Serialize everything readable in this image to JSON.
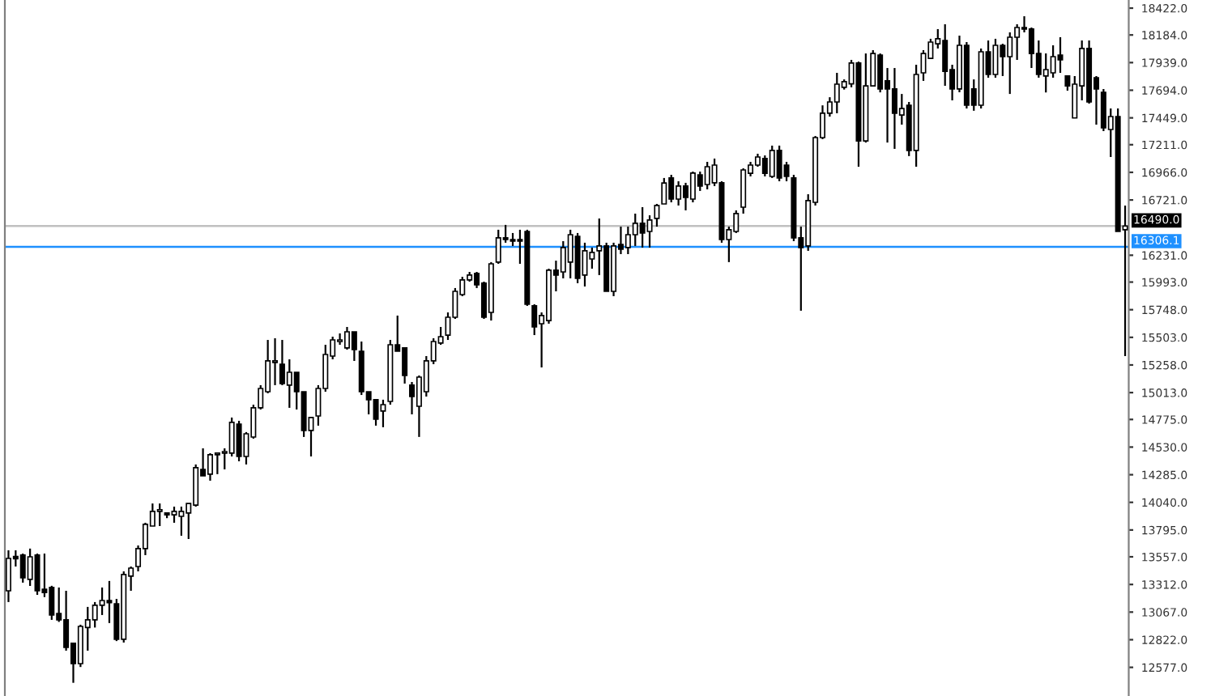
{
  "chart_data": {
    "type": "candlestick",
    "categories": [
      null,
      null,
      null,
      null,
      null,
      null,
      null,
      null,
      null,
      null,
      null,
      null,
      null,
      null,
      null,
      null,
      null,
      null,
      null,
      null,
      null,
      null,
      null,
      null,
      null,
      null,
      null,
      null,
      null,
      null,
      null,
      null,
      null,
      null,
      null,
      null,
      null,
      null,
      null,
      null,
      null,
      null,
      null,
      null,
      null,
      null,
      null,
      null,
      null,
      null,
      null,
      null,
      null,
      null,
      null,
      null,
      null,
      null,
      null,
      null,
      null,
      null,
      null,
      null,
      null,
      null,
      null,
      null,
      null,
      null,
      null,
      null,
      null,
      null,
      null,
      null,
      null,
      null,
      null,
      null,
      null,
      null,
      null,
      null,
      null,
      null,
      null,
      null,
      null,
      null,
      null,
      null,
      null,
      null,
      null,
      null,
      null,
      null,
      null,
      null,
      null,
      null,
      null,
      null,
      null,
      null,
      null,
      null,
      null,
      null,
      null,
      null,
      null,
      null,
      null,
      null,
      null,
      null,
      null,
      null,
      null,
      null,
      null,
      null,
      null,
      null,
      null,
      null,
      null,
      null,
      null,
      null,
      null,
      null,
      null,
      null,
      null,
      null,
      null,
      null,
      null,
      null,
      null,
      null,
      null,
      null,
      null,
      null,
      null,
      null,
      null,
      null,
      null,
      null,
      null,
      null
    ],
    "ohlc": [
      [
        13256,
        13615,
        13156,
        13543
      ],
      [
        13560,
        13615,
        13471,
        13540
      ],
      [
        13572,
        13586,
        13328,
        13371
      ],
      [
        13357,
        13630,
        13299,
        13557
      ],
      [
        13572,
        13586,
        13220,
        13256
      ],
      [
        13270,
        13586,
        13200,
        13240
      ],
      [
        13285,
        13300,
        12998,
        13041
      ],
      [
        13055,
        13285,
        12980,
        12998
      ],
      [
        12998,
        13256,
        12725,
        12754
      ],
      [
        12790,
        12790,
        12440,
        12610
      ],
      [
        12610,
        12955,
        12580,
        12940
      ],
      [
        12930,
        13113,
        12725,
        12998
      ],
      [
        12998,
        13156,
        12930,
        13127
      ],
      [
        13127,
        13285,
        13041,
        13170
      ],
      [
        13170,
        13343,
        12970,
        13150
      ],
      [
        13141,
        13184,
        12810,
        12826
      ],
      [
        12826,
        13428,
        12797,
        13400
      ],
      [
        13386,
        13471,
        13256,
        13457
      ],
      [
        13471,
        13658,
        13428,
        13630
      ],
      [
        13630,
        13859,
        13572,
        13845
      ],
      [
        13830,
        14030,
        13830,
        13960
      ],
      [
        13960,
        14030,
        13830,
        13975
      ],
      [
        13945,
        13945,
        13900,
        13930
      ],
      [
        13930,
        14002,
        13859,
        13960
      ],
      [
        13916,
        14002,
        13744,
        13960
      ],
      [
        13945,
        14030,
        13715,
        14030
      ],
      [
        14016,
        14376,
        14002,
        14347
      ],
      [
        14332,
        14519,
        14275,
        14275
      ],
      [
        14290,
        14476,
        14232,
        14462
      ],
      [
        14462,
        14476,
        14290,
        14476
      ],
      [
        14476,
        14519,
        14332,
        14490
      ],
      [
        14476,
        14792,
        14447,
        14749
      ],
      [
        14734,
        14763,
        14404,
        14447
      ],
      [
        14447,
        14663,
        14376,
        14648
      ],
      [
        14619,
        14906,
        14605,
        14878
      ],
      [
        14878,
        15079,
        14863,
        15050
      ],
      [
        15021,
        15480,
        15007,
        15294
      ],
      [
        15280,
        15495,
        15079,
        15294
      ],
      [
        15265,
        15480,
        15079,
        15093
      ],
      [
        15079,
        15308,
        14878,
        15193
      ],
      [
        15193,
        15193,
        14863,
        15021
      ],
      [
        15021,
        15021,
        14620,
        14677
      ],
      [
        14677,
        14792,
        14447,
        14792
      ],
      [
        14806,
        15079,
        14720,
        15050
      ],
      [
        15050,
        15437,
        15021,
        15351
      ],
      [
        15337,
        15509,
        15308,
        15480
      ],
      [
        15466,
        15538,
        15437,
        15480
      ],
      [
        15409,
        15595,
        15394,
        15552
      ],
      [
        15552,
        15552,
        15294,
        15394
      ],
      [
        15380,
        15466,
        14992,
        15021
      ],
      [
        15021,
        15021,
        14820,
        14950
      ],
      [
        14950,
        14950,
        14720,
        14777
      ],
      [
        14850,
        14950,
        14706,
        14906
      ],
      [
        14935,
        15480,
        14906,
        15437
      ],
      [
        15437,
        15696,
        15380,
        15380
      ],
      [
        15409,
        15409,
        15093,
        15165
      ],
      [
        15079,
        15107,
        14820,
        14978
      ],
      [
        14892,
        15165,
        14620,
        15150
      ],
      [
        15021,
        15337,
        14978,
        15294
      ],
      [
        15294,
        15495,
        15265,
        15466
      ],
      [
        15452,
        15595,
        15437,
        15509
      ],
      [
        15523,
        15724,
        15480,
        15681
      ],
      [
        15681,
        15940,
        15667,
        15911
      ],
      [
        15882,
        16040,
        15868,
        16012
      ],
      [
        16012,
        16083,
        15997,
        16055
      ],
      [
        16069,
        16083,
        15940,
        15968
      ],
      [
        15983,
        15997,
        15667,
        15681
      ],
      [
        15724,
        16170,
        15652,
        16155
      ],
      [
        16170,
        16457,
        16155,
        16385
      ],
      [
        16385,
        16500,
        16342,
        16370
      ],
      [
        16370,
        16428,
        16313,
        16356
      ],
      [
        16370,
        16457,
        16155,
        16356
      ],
      [
        16442,
        16457,
        15782,
        15796
      ],
      [
        15782,
        15796,
        15523,
        15595
      ],
      [
        15624,
        15724,
        15236,
        15696
      ],
      [
        15652,
        16112,
        15624,
        16098
      ],
      [
        16098,
        16183,
        15911,
        16055
      ],
      [
        16083,
        16356,
        16026,
        16299
      ],
      [
        16170,
        16457,
        16026,
        16413
      ],
      [
        16399,
        16428,
        15983,
        16026
      ],
      [
        16055,
        16342,
        15954,
        16270
      ],
      [
        16198,
        16299,
        16112,
        16256
      ],
      [
        16270,
        16557,
        16055,
        16313
      ],
      [
        16313,
        16342,
        15911,
        15911
      ],
      [
        15911,
        16342,
        15868,
        16313
      ],
      [
        16327,
        16485,
        16241,
        16284
      ],
      [
        16299,
        16485,
        16241,
        16413
      ],
      [
        16413,
        16600,
        16313,
        16514
      ],
      [
        16514,
        16657,
        16299,
        16428
      ],
      [
        16442,
        16585,
        16299,
        16543
      ],
      [
        16557,
        16686,
        16485,
        16672
      ],
      [
        16686,
        16916,
        16686,
        16872
      ],
      [
        16916,
        16944,
        16700,
        16729
      ],
      [
        16729,
        16887,
        16672,
        16844
      ],
      [
        16844,
        16873,
        16629,
        16743
      ],
      [
        16729,
        16973,
        16700,
        16959
      ],
      [
        16944,
        16973,
        16801,
        16844
      ],
      [
        16858,
        17059,
        16815,
        17016
      ],
      [
        16873,
        17088,
        16844,
        17030
      ],
      [
        16873,
        16887,
        16342,
        16370
      ],
      [
        16370,
        16485,
        16170,
        16457
      ],
      [
        16442,
        16629,
        16428,
        16600
      ],
      [
        16657,
        17002,
        16600,
        16987
      ],
      [
        16958,
        17059,
        16930,
        17030
      ],
      [
        17030,
        17131,
        17016,
        17102
      ],
      [
        17088,
        17116,
        16930,
        16958
      ],
      [
        16930,
        17203,
        16916,
        17160
      ],
      [
        17160,
        17203,
        16887,
        16916
      ],
      [
        17030,
        17059,
        16887,
        16930
      ],
      [
        16916,
        16944,
        16356,
        16385
      ],
      [
        16385,
        16485,
        15739,
        16299
      ],
      [
        16313,
        16772,
        16270,
        16715
      ],
      [
        16700,
        17288,
        16672,
        17274
      ],
      [
        17274,
        17560,
        17260,
        17490
      ],
      [
        17490,
        17632,
        17460,
        17590
      ],
      [
        17590,
        17848,
        17490,
        17748
      ],
      [
        17720,
        17790,
        17700,
        17770
      ],
      [
        17750,
        17963,
        17720,
        17935
      ],
      [
        17935,
        17948,
        17016,
        17245
      ],
      [
        17245,
        18020,
        17230,
        17733
      ],
      [
        17733,
        18049,
        17733,
        18020
      ],
      [
        18006,
        18020,
        17675,
        17705
      ],
      [
        17777,
        17891,
        17230,
        17705
      ],
      [
        17705,
        17891,
        17174,
        17490
      ],
      [
        17474,
        17661,
        17389,
        17532
      ],
      [
        17560,
        17590,
        17110,
        17160
      ],
      [
        17160,
        17920,
        17016,
        17834
      ],
      [
        17848,
        18049,
        17777,
        18020
      ],
      [
        17977,
        18150,
        17977,
        18121
      ],
      [
        18106,
        18236,
        18064,
        18150
      ],
      [
        18135,
        18279,
        17733,
        17862
      ],
      [
        17877,
        17920,
        17604,
        17705
      ],
      [
        17705,
        18178,
        17676,
        18092
      ],
      [
        18092,
        18121,
        17532,
        17561
      ],
      [
        17705,
        17790,
        17512,
        17561
      ],
      [
        17561,
        18064,
        17532,
        18035
      ],
      [
        18035,
        18135,
        17805,
        17834
      ],
      [
        17834,
        18150,
        17805,
        18092
      ],
      [
        18092,
        18106,
        17820,
        17992
      ],
      [
        17992,
        18207,
        17661,
        18164
      ],
      [
        18164,
        18279,
        17963,
        18250
      ],
      [
        18250,
        18350,
        18207,
        18236
      ],
      [
        18236,
        18250,
        17891,
        18020
      ],
      [
        18020,
        18135,
        17805,
        17834
      ],
      [
        17820,
        18020,
        17675,
        17877
      ],
      [
        17848,
        18092,
        17805,
        17992
      ],
      [
        18006,
        18164,
        17848,
        17963
      ],
      [
        17820,
        17820,
        17690,
        17733
      ],
      [
        17448,
        17820,
        17446,
        17748
      ],
      [
        17733,
        18135,
        17604,
        18064
      ],
      [
        18064,
        18135,
        17575,
        17590
      ],
      [
        17805,
        17820,
        17389,
        17705
      ],
      [
        17676,
        17705,
        17331,
        17360
      ],
      [
        17346,
        17532,
        17102,
        17461
      ],
      [
        17461,
        17532,
        16442,
        16442
      ],
      [
        16457,
        16672,
        15337,
        16490
      ]
    ],
    "ylim": [
      12323,
      18494
    ],
    "yticks": [
      {
        "value": 18422,
        "label": "18422.0"
      },
      {
        "value": 18184,
        "label": "18184.0"
      },
      {
        "value": 17939,
        "label": "17939.0"
      },
      {
        "value": 17694,
        "label": "17694.0"
      },
      {
        "value": 17449,
        "label": "17449.0"
      },
      {
        "value": 17211,
        "label": "17211.0"
      },
      {
        "value": 16966,
        "label": "16966.0"
      },
      {
        "value": 16721,
        "label": "16721.0"
      },
      {
        "value": 16231,
        "label": "16231.0"
      },
      {
        "value": 15993,
        "label": "15993.0"
      },
      {
        "value": 15748,
        "label": "15748.0"
      },
      {
        "value": 15503,
        "label": "15503.0"
      },
      {
        "value": 15258,
        "label": "15258.0"
      },
      {
        "value": 15013,
        "label": "15013.0"
      },
      {
        "value": 14775,
        "label": "14775.0"
      },
      {
        "value": 14530,
        "label": "14530.0"
      },
      {
        "value": 14285,
        "label": "14285.0"
      },
      {
        "value": 14040,
        "label": "14040.0"
      },
      {
        "value": 13795,
        "label": "13795.0"
      },
      {
        "value": 13557,
        "label": "13557.0"
      },
      {
        "value": 13312,
        "label": "13312.0"
      },
      {
        "value": 13067,
        "label": "13067.0"
      },
      {
        "value": 12822,
        "label": "12822.0"
      },
      {
        "value": 12577,
        "label": "12577.0"
      }
    ],
    "ref_lines": [
      {
        "axis": "y",
        "value": 16490,
        "label": "16490.0",
        "color": "#c0c0c0"
      },
      {
        "axis": "y",
        "value": 16306.1,
        "label": "16306.1",
        "color": "#1e90ff"
      }
    ],
    "tick_labels": "y",
    "grid": false
  }
}
